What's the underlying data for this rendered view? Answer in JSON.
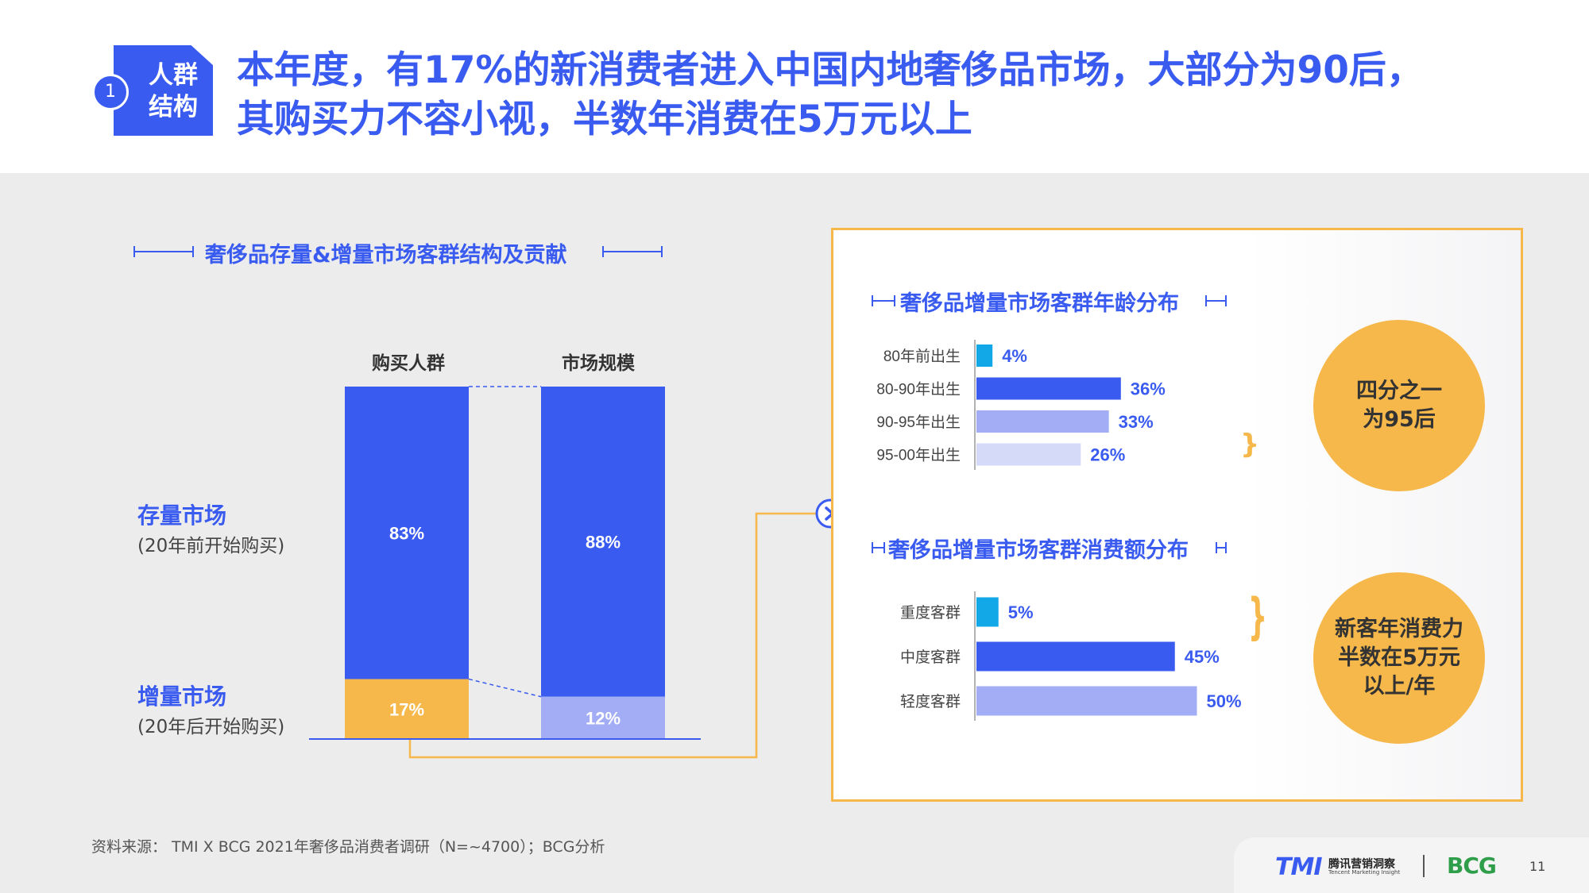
{
  "header": {
    "badge_label": "人群\n结构",
    "badge_number": "1",
    "headline_line1": "本年度，有17%的新消费者进入中国内地奢侈品市场，大部分为90后，",
    "headline_line2": "其购买力不容小视，半数年消费在5万元以上"
  },
  "left": {
    "section_title": "奢侈品存量&增量市场客群结构及贡献",
    "rows": {
      "existing_label": "存量市场",
      "existing_sub": "(20年前开始购买)",
      "new_label": "增量市场",
      "new_sub": "(20年后开始购买)"
    }
  },
  "right": {
    "age_title": "奢侈品增量市场客群年龄分布",
    "spend_title": "奢侈品增量市场客群消费额分布",
    "circle_age": "四分之一\n为95后",
    "circle_spend": "新客年消费力\n半数在5万元\n以上/年"
  },
  "colors": {
    "blue": "#3a5bf0",
    "orange": "#f6b84a",
    "light_blue": "#a2adf6",
    "lighter_blue": "#d5daf8",
    "cyan": "#12a8e8"
  },
  "chart_data": [
    {
      "type": "bar",
      "stacked": true,
      "categories": [
        "购买人群",
        "市场规模"
      ],
      "series": [
        {
          "name": "存量市场",
          "values": [
            83,
            88
          ],
          "labels": [
            "83%",
            "88%"
          ]
        },
        {
          "name": "增量市场",
          "values": [
            17,
            12
          ],
          "labels": [
            "17%",
            "12%"
          ]
        }
      ],
      "ylim": [
        0,
        100
      ]
    },
    {
      "type": "bar",
      "orientation": "horizontal",
      "title": "奢侈品增量市场客群年龄分布",
      "categories": [
        "80年前出生",
        "80-90年出生",
        "90-95年出生",
        "95-00年出生"
      ],
      "values": [
        4,
        36,
        33,
        26
      ],
      "labels": [
        "4%",
        "36%",
        "33%",
        "26%"
      ]
    },
    {
      "type": "bar",
      "orientation": "horizontal",
      "title": "奢侈品增量市场客群消费额分布",
      "categories": [
        "重度客群",
        "中度客群",
        "轻度客群"
      ],
      "values": [
        5,
        45,
        50
      ],
      "labels": [
        "5%",
        "45%",
        "50%"
      ]
    }
  ],
  "footer": {
    "source": "资料来源：  TMI X BCG 2021年奢侈品消费者调研（N=~4700）；BCG分析",
    "tmi_logo": "TMI",
    "tmi_cn": "腾讯营销洞察",
    "tmi_en": "Tencent Marketing Insight",
    "bcg_logo": "BCG",
    "page_number": "11"
  }
}
